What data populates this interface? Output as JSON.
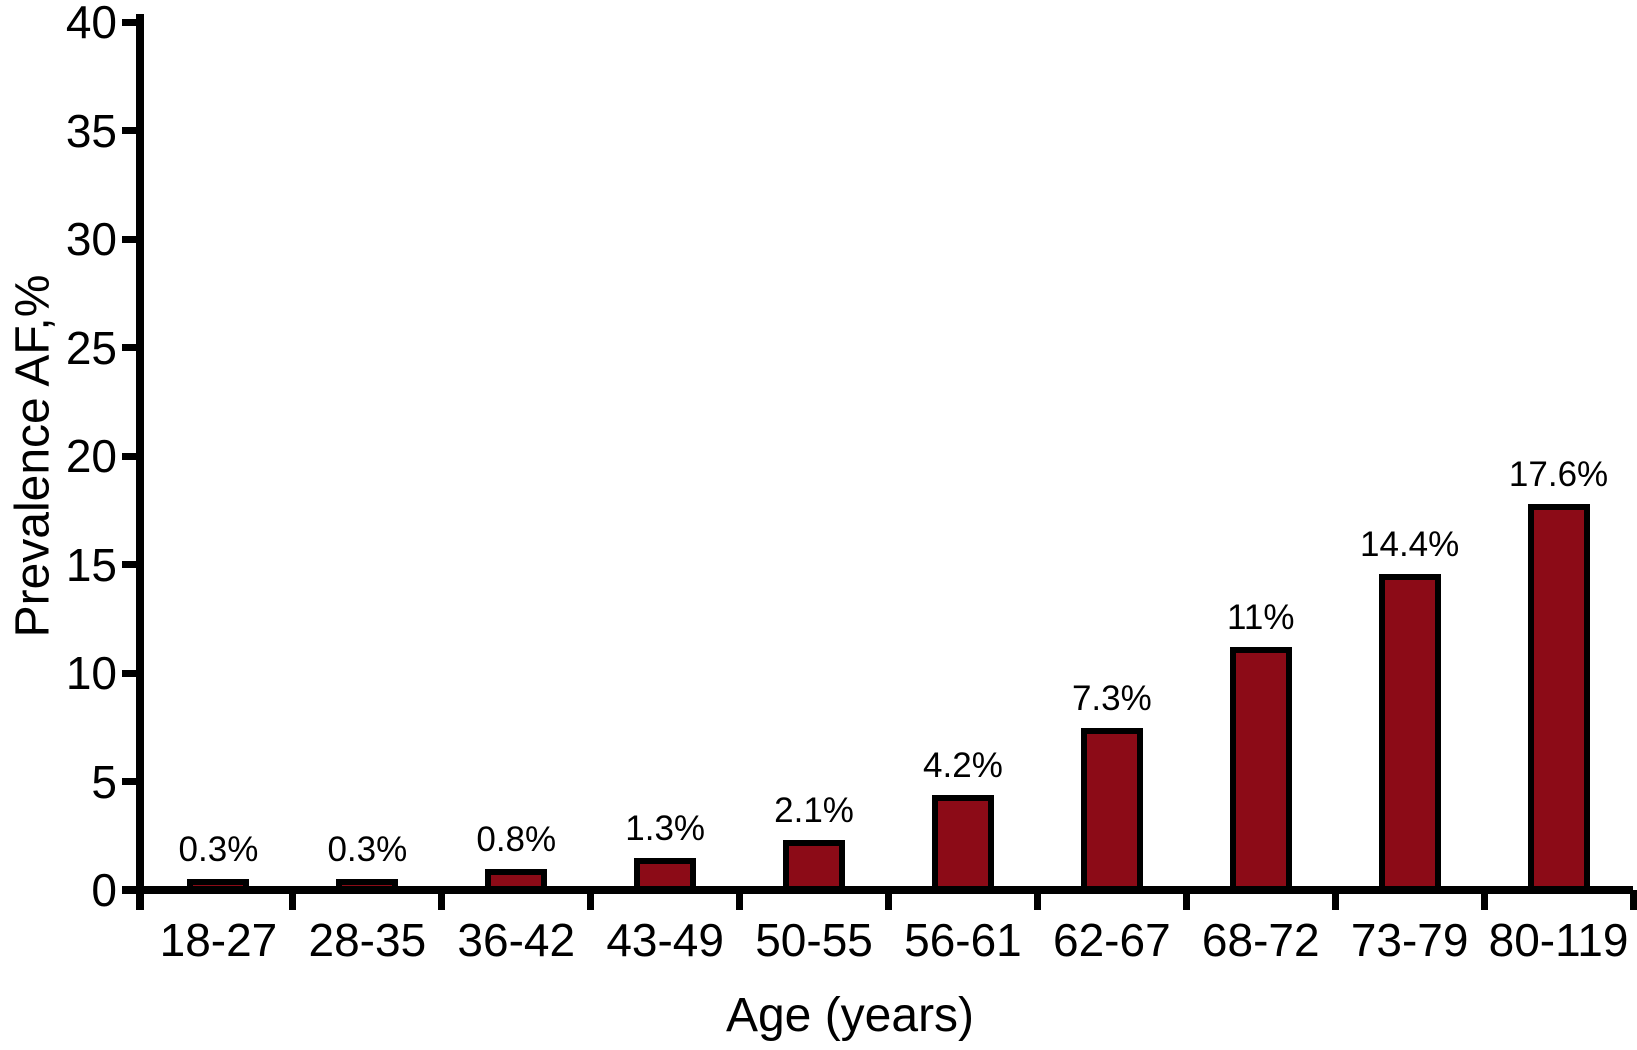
{
  "chart_data": {
    "type": "bar",
    "title": "",
    "xlabel": "Age (years)",
    "ylabel": "Prevalence AF,%",
    "categories": [
      "18-27",
      "28-35",
      "36-42",
      "43-49",
      "50-55",
      "56-61",
      "62-67",
      "68-72",
      "73-79",
      "80-119"
    ],
    "values": [
      0.3,
      0.3,
      0.8,
      1.3,
      2.1,
      4.2,
      7.3,
      11,
      14.4,
      17.6
    ],
    "bar_labels": [
      "0.3%",
      "0.3%",
      "0.8%",
      "1.3%",
      "2.1%",
      "4.2%",
      "7.3%",
      "11%",
      "14.4%",
      "17.6%"
    ],
    "yticks": [
      0,
      5,
      10,
      15,
      20,
      25,
      30,
      35,
      40
    ],
    "ylim": [
      0,
      40
    ],
    "grid": false,
    "legend_position": "none",
    "bar_color": "#8C0B17",
    "bar_border_color": "#000000",
    "axis_color": "#000000",
    "background_color": "#ffffff"
  }
}
